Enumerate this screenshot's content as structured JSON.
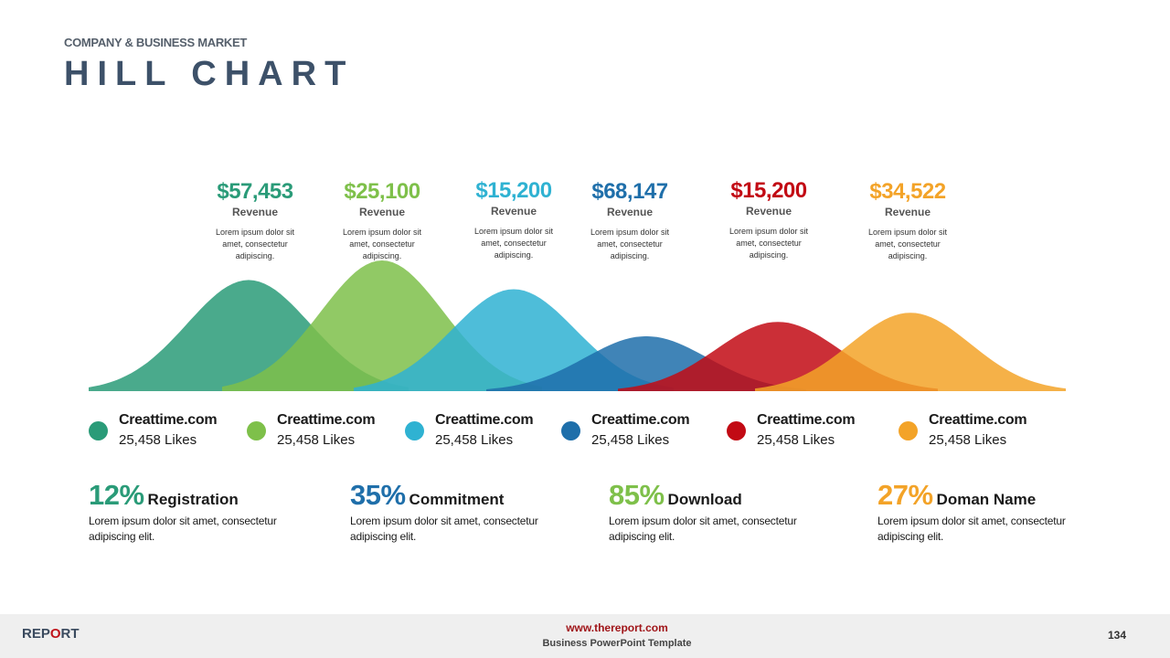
{
  "header": {
    "subtitle": "COMPANY & BUSINESS MARKET",
    "title": "HILL CHART"
  },
  "chart_data": {
    "type": "area",
    "series": [
      {
        "amount": "$57,453",
        "label": "Revenue",
        "desc": "Lorem ipsum dolor sit amet, consectetur adipiscing.",
        "color": "#2a9b78",
        "peak": 0.85
      },
      {
        "amount": "$25,100",
        "label": "Revenue",
        "desc": "Lorem ipsum dolor sit amet, consectetur adipiscing.",
        "color": "#7ec04a",
        "peak": 1.0
      },
      {
        "amount": "$15,200",
        "label": "Revenue",
        "desc": "Lorem ipsum dolor sit amet, consectetur adipiscing.",
        "color": "#2fb2d2",
        "peak": 0.78
      },
      {
        "amount": "$68,147",
        "label": "Revenue",
        "desc": "Lorem ipsum dolor sit amet, consectetur adipiscing.",
        "color": "#1f6faa",
        "peak": 0.42
      },
      {
        "amount": "$15,200",
        "label": "Revenue",
        "desc": "Lorem ipsum dolor sit amet, consectetur adipiscing.",
        "color": "#c20a14",
        "peak": 0.53
      },
      {
        "amount": "$34,522",
        "label": "Revenue",
        "desc": "Lorem ipsum dolor sit amet, consectetur adipiscing.",
        "color": "#f3a328",
        "peak": 0.6
      }
    ]
  },
  "legend": [
    {
      "title": "Creattime.com",
      "likes": "25,458 Likes",
      "color": "#2a9b78"
    },
    {
      "title": "Creattime.com",
      "likes": "25,458 Likes",
      "color": "#7ec04a"
    },
    {
      "title": "Creattime.com",
      "likes": "25,458 Likes",
      "color": "#2fb2d2"
    },
    {
      "title": "Creattime.com",
      "likes": "25,458 Likes",
      "color": "#1f6faa"
    },
    {
      "title": "Creattime.com",
      "likes": "25,458 Likes",
      "color": "#c20a14"
    },
    {
      "title": "Creattime.com",
      "likes": "25,458 Likes",
      "color": "#f3a328"
    }
  ],
  "stats": [
    {
      "pct": "12%",
      "name": "Registration",
      "desc": "Lorem ipsum dolor sit amet, consectetur adipiscing elit.",
      "color": "#2a9b78"
    },
    {
      "pct": "35%",
      "name": "Commitment",
      "desc": "Lorem ipsum dolor sit amet, consectetur adipiscing elit.",
      "color": "#1f6faa"
    },
    {
      "pct": "85%",
      "name": "Download",
      "desc": "Lorem ipsum dolor sit amet, consectetur adipiscing elit.",
      "color": "#7ec04a"
    },
    {
      "pct": "27%",
      "name": "Doman Name",
      "desc": "Lorem ipsum dolor sit amet, consectetur adipiscing elit.",
      "color": "#f3a328"
    }
  ],
  "footer": {
    "brand_pre": "REP",
    "brand_o": "O",
    "brand_post": "RT",
    "site": "www.thereport.com",
    "tagline": "Business PowerPoint Template",
    "page": "134"
  }
}
